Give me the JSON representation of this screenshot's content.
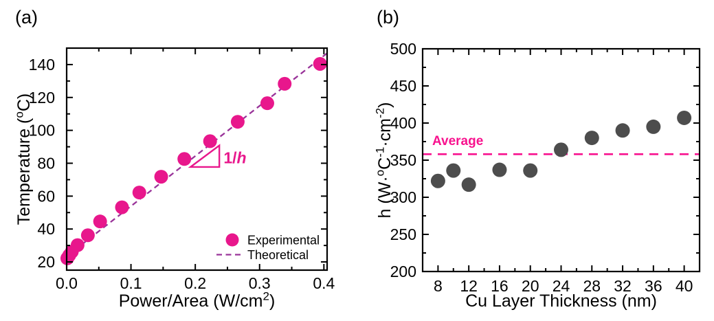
{
  "figure": {
    "panel_a_label": "(a)",
    "panel_b_label": "(b)",
    "background": "#ffffff"
  },
  "colors": {
    "magenta": "#E8178C",
    "purple": "#993399",
    "dark_gray": "#4D4D4D",
    "pink": "#F8128E",
    "black": "#000000"
  },
  "chart_data": [
    {
      "id": "a",
      "type": "scatter",
      "panel_label": "(a)",
      "xlabel_parts": [
        {
          "t": "Power/Area (W/cm"
        },
        {
          "t": "2",
          "sup": true
        },
        {
          "t": ")"
        }
      ],
      "ylabel_parts": [
        {
          "t": "Temperature ("
        },
        {
          "t": "o",
          "sup": true
        },
        {
          "t": "C)"
        }
      ],
      "xlim": [
        0,
        0.405
      ],
      "ylim": [
        15,
        150
      ],
      "x_ticks": {
        "values": [
          0,
          0.1,
          0.2,
          0.3,
          0.4
        ],
        "labels": [
          "0.0",
          "0.1",
          "0.2",
          "0.3",
          "0.4"
        ],
        "minor": [
          0.05,
          0.15,
          0.25,
          0.35
        ]
      },
      "y_ticks": {
        "values": [
          20,
          40,
          60,
          80,
          100,
          120,
          140
        ],
        "labels": [
          "20",
          "40",
          "60",
          "80",
          "100",
          "120",
          "140"
        ],
        "minor": [
          30,
          50,
          70,
          90,
          110,
          130
        ]
      },
      "grid": false,
      "series": [
        {
          "name": "Experimental",
          "kind": "scatter",
          "color": "magenta",
          "points": [
            [
              0.001,
              22.2
            ],
            [
              0.004,
              24.0
            ],
            [
              0.008,
              26.2
            ],
            [
              0.017,
              30.2
            ],
            [
              0.033,
              36.2
            ],
            [
              0.052,
              44.6
            ],
            [
              0.086,
              53.2
            ],
            [
              0.113,
              62.2
            ],
            [
              0.147,
              71.8
            ],
            [
              0.183,
              82.6
            ],
            [
              0.223,
              93.4
            ],
            [
              0.266,
              105.2
            ],
            [
              0.312,
              116.5
            ],
            [
              0.339,
              128.3
            ],
            [
              0.394,
              140.4
            ]
          ]
        },
        {
          "name": "Theoretical",
          "kind": "dashed_line",
          "color": "purple",
          "x": [
            0,
            0.405
          ],
          "y": [
            23.4,
            146.9
          ]
        }
      ],
      "legend": {
        "position": "lower right",
        "items": [
          {
            "marker": "dot",
            "color": "magenta",
            "label": "Experimental"
          },
          {
            "marker": "dash",
            "color": "purple",
            "label": "Theoretical"
          }
        ]
      },
      "annotation": {
        "slope_triangle": {
          "vertices": [
            [
              0.1925,
              77.7
            ],
            [
              0.2374,
              77.7
            ],
            [
              0.2374,
              90.8
            ]
          ],
          "label_parts": [
            {
              "t": "1/"
            },
            {
              "t": "h",
              "i": true
            }
          ],
          "label_at": [
            0.244,
            80.0
          ],
          "color": "magenta"
        }
      }
    },
    {
      "id": "b",
      "type": "scatter",
      "panel_label": "(b)",
      "xlabel_parts": [
        {
          "t": "Cu Layer Thickness (nm)"
        }
      ],
      "ylabel_parts": [
        {
          "t": "h (W·"
        },
        {
          "t": "o",
          "sup": true
        },
        {
          "t": "C"
        },
        {
          "t": "-1",
          "sup": true
        },
        {
          "t": "·cm"
        },
        {
          "t": "-2",
          "sup": true
        },
        {
          "t": ")"
        }
      ],
      "xlim": [
        6,
        42
      ],
      "ylim": [
        200,
        500
      ],
      "x_ticks": {
        "values": [
          8,
          12,
          16,
          20,
          24,
          28,
          32,
          36,
          40
        ],
        "labels": [
          "8",
          "12",
          "16",
          "20",
          "24",
          "28",
          "32",
          "36",
          "40"
        ],
        "minor": [
          6,
          10,
          14,
          18,
          22,
          26,
          30,
          34,
          38,
          42
        ]
      },
      "y_ticks": {
        "values": [
          200,
          250,
          300,
          350,
          400,
          450,
          500
        ],
        "labels": [
          "200",
          "250",
          "300",
          "350",
          "400",
          "450",
          "500"
        ],
        "minor": [
          225,
          275,
          325,
          375,
          425,
          475
        ]
      },
      "grid": false,
      "series": [
        {
          "name": "h",
          "kind": "scatter",
          "color": "dark_gray",
          "points": [
            [
              8,
              322
            ],
            [
              10,
              336
            ],
            [
              12,
              317
            ],
            [
              16,
              337
            ],
            [
              20,
              336
            ],
            [
              24,
              364
            ],
            [
              28,
              380
            ],
            [
              32,
              390
            ],
            [
              36,
              395
            ],
            [
              40,
              407
            ]
          ]
        }
      ],
      "average_line": {
        "value": 358,
        "label": "Average",
        "label_at": [
          7.25,
          370.5
        ],
        "color": "pink"
      }
    }
  ]
}
